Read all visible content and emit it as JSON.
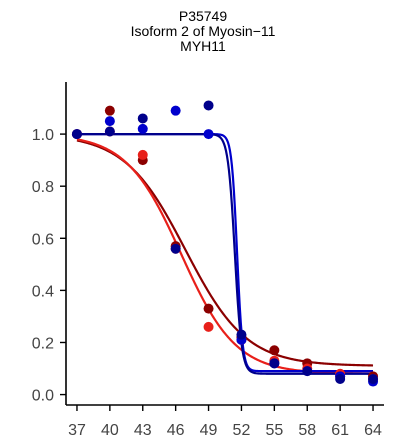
{
  "chart_data": {
    "type": "scatter",
    "title_lines": [
      "P35749",
      "Isoform 2 of Myosin−11",
      "MYH11"
    ],
    "xlabel": "",
    "ylabel": "",
    "x_ticks": [
      37,
      40,
      43,
      46,
      49,
      52,
      55,
      58,
      61,
      64
    ],
    "y_ticks": [
      "0.0",
      "0.2",
      "0.4",
      "0.6",
      "0.8",
      "1.0"
    ],
    "xlim": [
      36,
      65
    ],
    "ylim": [
      -0.04,
      1.2
    ],
    "grid": false,
    "series": [
      {
        "color": "#8B0000",
        "points": [
          [
            37,
            1.0
          ],
          [
            40,
            1.09
          ],
          [
            43,
            0.9
          ],
          [
            46,
            0.57
          ],
          [
            49,
            0.33
          ],
          [
            52,
            0.22
          ],
          [
            55,
            0.17
          ],
          [
            58,
            0.12
          ],
          [
            61,
            0.07
          ],
          [
            64,
            0.07
          ]
        ],
        "curve": {
          "bottom": 0.11,
          "x50": 46.9,
          "slope": 0.36
        }
      },
      {
        "color": "#E8201A",
        "points": [
          [
            37,
            1.0
          ],
          [
            40,
            1.01
          ],
          [
            43,
            0.92
          ],
          [
            46,
            0.56
          ],
          [
            49,
            0.26
          ],
          [
            52,
            0.21
          ],
          [
            55,
            0.13
          ],
          [
            58,
            0.1
          ],
          [
            61,
            0.08
          ],
          [
            64,
            0.06
          ]
        ],
        "curve": {
          "bottom": 0.08,
          "x50": 46.5,
          "slope": 0.4
        }
      },
      {
        "color": "#0000CD",
        "points": [
          [
            37,
            1.0
          ],
          [
            40,
            1.05
          ],
          [
            43,
            1.02
          ],
          [
            46,
            1.09
          ],
          [
            49,
            1.0
          ],
          [
            52,
            0.21
          ],
          [
            55,
            0.12
          ],
          [
            58,
            0.09
          ],
          [
            61,
            0.07
          ],
          [
            64,
            0.05
          ]
        ],
        "curve": {
          "bottom": 0.09,
          "x50": 51.6,
          "slope": 4.0
        }
      },
      {
        "color": "#00008B",
        "points": [
          [
            37,
            1.0
          ],
          [
            40,
            1.01
          ],
          [
            43,
            1.06
          ],
          [
            46,
            0.56
          ],
          [
            49,
            1.11
          ],
          [
            52,
            0.23
          ],
          [
            55,
            0.12
          ],
          [
            58,
            0.09
          ],
          [
            61,
            0.06
          ],
          [
            64,
            0.06
          ]
        ],
        "curve": {
          "bottom": 0.08,
          "x50": 51.4,
          "slope": 3.2
        }
      }
    ]
  }
}
